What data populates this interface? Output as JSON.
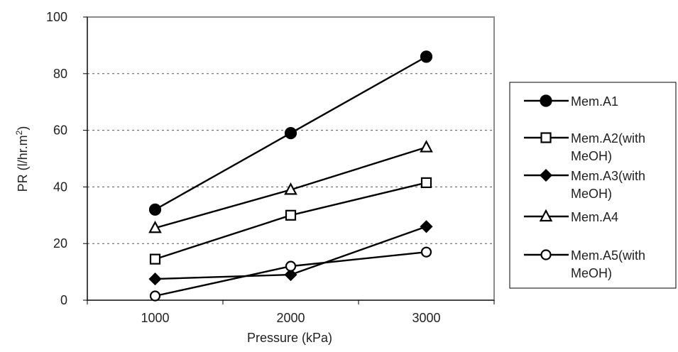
{
  "chart_data": {
    "type": "line",
    "title": "",
    "xlabel": "Pressure (kPa)",
    "ylabel_main": "PR (l/hr.m",
    "ylabel_sup": "2",
    "ylabel_close": ")",
    "categories": [
      "1000",
      "2000",
      "3000"
    ],
    "x": [
      1000,
      2000,
      3000
    ],
    "ylim": [
      0,
      100
    ],
    "yticks": [
      0,
      20,
      40,
      60,
      80,
      100
    ],
    "grid": true,
    "legend_position": "right",
    "series": [
      {
        "name_lines": [
          "Mem.A1"
        ],
        "marker": "circle-filled",
        "values": [
          32,
          59,
          86
        ]
      },
      {
        "name_lines": [
          "Mem.A2(with",
          "MeOH)"
        ],
        "marker": "square-open",
        "values": [
          14.5,
          30,
          41.5
        ]
      },
      {
        "name_lines": [
          "Mem.A3(with",
          "MeOH)"
        ],
        "marker": "diamond-filled",
        "values": [
          7.5,
          9,
          26
        ]
      },
      {
        "name_lines": [
          "Mem.A4"
        ],
        "marker": "triangle-open",
        "values": [
          25.5,
          39,
          54
        ]
      },
      {
        "name_lines": [
          "Mem.A5(with",
          "MeOH)"
        ],
        "marker": "circle-open",
        "values": [
          1.5,
          12,
          17
        ]
      }
    ]
  }
}
